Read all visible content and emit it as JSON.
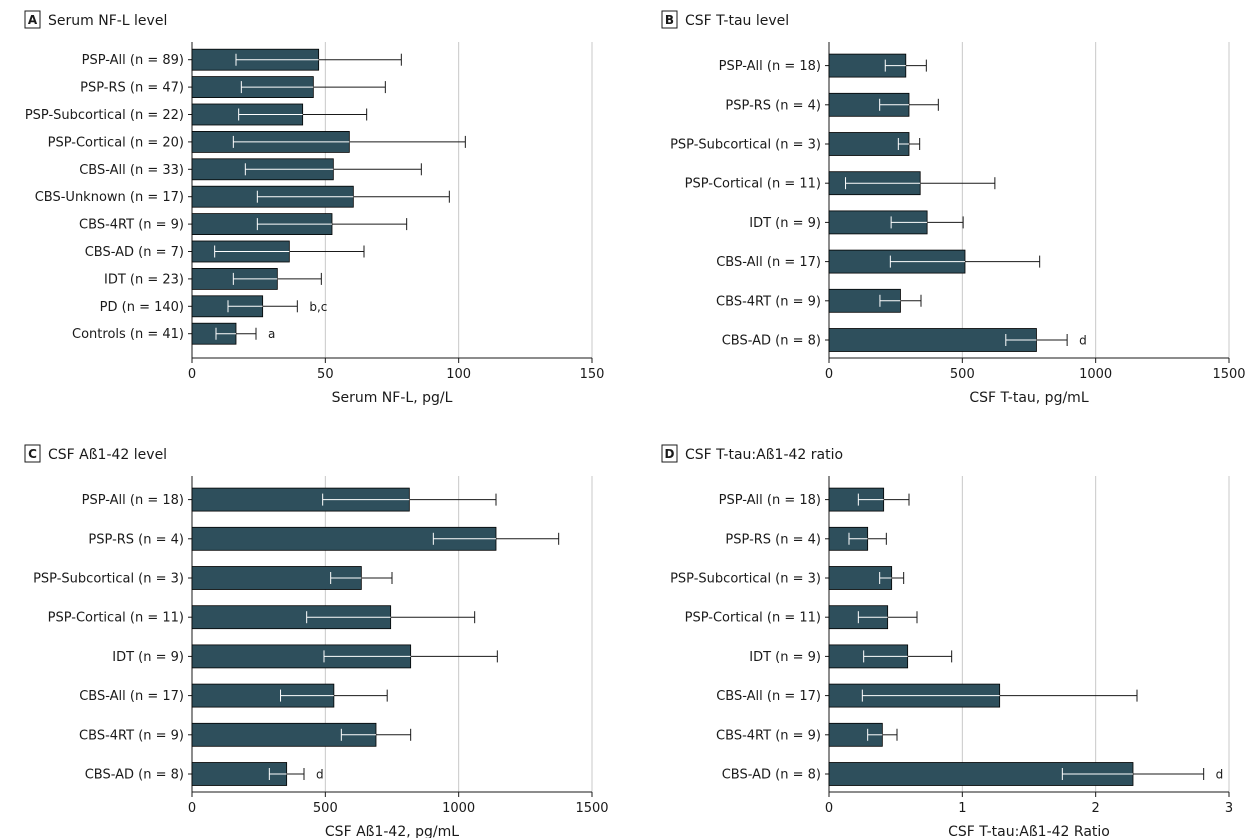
{
  "colors": {
    "bar": "#2e4f5c",
    "gridline": "#c8c8c8",
    "axis": "#1a1a1a",
    "inner_whisker": "#ffffff"
  },
  "chart_data": [
    {
      "panel": "A",
      "title": "Serum NF-L level",
      "type": "bar",
      "orientation": "horizontal",
      "xlabel": "Serum NF-L, pg/L",
      "xlim": [
        0,
        150
      ],
      "xticks": [
        0,
        50,
        100,
        150
      ],
      "grid": true,
      "categories": [
        "PSP-All (n = 89)",
        "PSP-RS (n = 47)",
        "PSP-Subcortical (n = 22)",
        "PSP-Cortical (n = 20)",
        "CBS-All (n = 33)",
        "CBS-Unknown (n = 17)",
        "CBS-4RT (n = 9)",
        "CBS-AD (n = 7)",
        "IDT (n = 23)",
        "PD (n = 140)",
        "Controls (n = 41)"
      ],
      "values": [
        47.5,
        45.5,
        41.5,
        59,
        53,
        60.5,
        52.5,
        36.5,
        32,
        26.5,
        16.5
      ],
      "errors": [
        31,
        27,
        24,
        43.5,
        33,
        36,
        28,
        28,
        16.5,
        13,
        7.5
      ],
      "annotations": [
        "",
        "",
        "",
        "",
        "",
        "",
        "",
        "",
        "",
        "b,c",
        "a"
      ]
    },
    {
      "panel": "B",
      "title": "CSF T-tau level",
      "type": "bar",
      "orientation": "horizontal",
      "xlabel": "CSF T-tau, pg/mL",
      "xlim": [
        0,
        1500
      ],
      "xticks": [
        0,
        500,
        1000,
        1500
      ],
      "grid": true,
      "categories": [
        "PSP-All (n = 18)",
        "PSP-RS (n = 4)",
        "PSP-Subcortical (n = 3)",
        "PSP-Cortical (n = 11)",
        "IDT (n = 9)",
        "CBS-All (n = 17)",
        "CBS-4RT (n = 9)",
        "CBS-AD (n = 8)"
      ],
      "values": [
        288,
        300,
        300,
        342,
        368,
        510,
        268,
        778
      ],
      "errors": [
        77,
        110,
        40,
        280,
        135,
        280,
        77,
        115
      ],
      "annotations": [
        "",
        "",
        "",
        "",
        "",
        "",
        "",
        "d"
      ]
    },
    {
      "panel": "C",
      "title": "CSF Aß1-42 level",
      "type": "bar",
      "orientation": "horizontal",
      "xlabel": "CSF Aß1-42, pg/mL",
      "xlim": [
        0,
        1500
      ],
      "xticks": [
        0,
        500,
        1000,
        1500
      ],
      "grid": true,
      "categories": [
        "PSP-All (n = 18)",
        "PSP-RS (n = 4)",
        "PSP-Subcortical (n = 3)",
        "PSP-Cortical (n = 11)",
        "IDT (n = 9)",
        "CBS-All (n = 17)",
        "CBS-4RT (n = 9)",
        "CBS-AD (n = 8)"
      ],
      "values": [
        815,
        1140,
        635,
        745,
        820,
        532,
        690,
        355
      ],
      "errors": [
        325,
        235,
        115,
        315,
        325,
        200,
        130,
        65
      ],
      "annotations": [
        "",
        "",
        "",
        "",
        "",
        "",
        "",
        "d"
      ]
    },
    {
      "panel": "D",
      "title": "CSF T-tau:Aß1-42 ratio",
      "type": "bar",
      "orientation": "horizontal",
      "xlabel": "CSF T-tau:Aß1-42 Ratio",
      "xlim": [
        0,
        3
      ],
      "xticks": [
        0,
        1,
        2,
        3
      ],
      "grid": true,
      "categories": [
        "PSP-All (n = 18)",
        "PSP-RS (n = 4)",
        "PSP-Subcortical (n = 3)",
        "PSP-Cortical (n = 11)",
        "IDT (n = 9)",
        "CBS-All (n = 17)",
        "CBS-4RT (n = 9)",
        "CBS-AD (n = 8)"
      ],
      "values": [
        0.41,
        0.29,
        0.47,
        0.44,
        0.59,
        1.28,
        0.4,
        2.28
      ],
      "errors": [
        0.19,
        0.14,
        0.09,
        0.22,
        0.33,
        1.03,
        0.11,
        0.53
      ],
      "annotations": [
        "",
        "",
        "",
        "",
        "",
        "",
        "",
        "d"
      ]
    }
  ]
}
